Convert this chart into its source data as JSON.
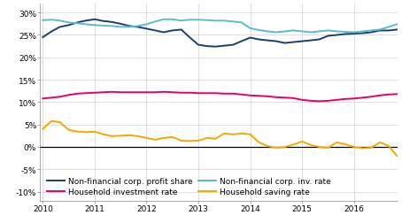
{
  "xlim": [
    2009.95,
    2016.85
  ],
  "ylim": [
    -0.12,
    0.32
  ],
  "yticks": [
    -0.1,
    -0.05,
    0.0,
    0.05,
    0.1,
    0.15,
    0.2,
    0.25,
    0.3
  ],
  "xticks": [
    2010,
    2011,
    2012,
    2013,
    2014,
    2015,
    2016
  ],
  "grid_color": "#d0d0d0",
  "bg_color": "#ffffff",
  "zero_line_color": "#000000",
  "nf_profit_share": {
    "color": "#1a3e6e",
    "label": "Non-financial corp. profit share",
    "x": [
      2010.0,
      2010.17,
      2010.33,
      2010.5,
      2010.67,
      2010.83,
      2011.0,
      2011.17,
      2011.33,
      2011.5,
      2011.67,
      2011.83,
      2012.0,
      2012.17,
      2012.33,
      2012.5,
      2012.67,
      2012.83,
      2013.0,
      2013.17,
      2013.33,
      2013.5,
      2013.67,
      2013.83,
      2014.0,
      2014.17,
      2014.33,
      2014.5,
      2014.67,
      2014.83,
      2015.0,
      2015.17,
      2015.33,
      2015.5,
      2015.67,
      2015.83,
      2016.0,
      2016.17,
      2016.33,
      2016.5,
      2016.67,
      2016.83
    ],
    "y": [
      0.245,
      0.258,
      0.268,
      0.272,
      0.278,
      0.282,
      0.285,
      0.281,
      0.279,
      0.275,
      0.27,
      0.268,
      0.264,
      0.26,
      0.256,
      0.26,
      0.262,
      0.245,
      0.228,
      0.225,
      0.224,
      0.226,
      0.228,
      0.236,
      0.244,
      0.24,
      0.238,
      0.236,
      0.232,
      0.234,
      0.236,
      0.238,
      0.24,
      0.248,
      0.25,
      0.252,
      0.253,
      0.254,
      0.256,
      0.26,
      0.26,
      0.262
    ]
  },
  "nf_inv_rate": {
    "color": "#5bbccc",
    "label": "Non-financial corp. inv. rate",
    "x": [
      2010.0,
      2010.17,
      2010.33,
      2010.5,
      2010.67,
      2010.83,
      2011.0,
      2011.17,
      2011.33,
      2011.5,
      2011.67,
      2011.83,
      2012.0,
      2012.17,
      2012.33,
      2012.5,
      2012.67,
      2012.83,
      2013.0,
      2013.17,
      2013.33,
      2013.5,
      2013.67,
      2013.83,
      2014.0,
      2014.17,
      2014.33,
      2014.5,
      2014.67,
      2014.83,
      2015.0,
      2015.17,
      2015.33,
      2015.5,
      2015.67,
      2015.83,
      2016.0,
      2016.17,
      2016.33,
      2016.5,
      2016.67,
      2016.83
    ],
    "y": [
      0.283,
      0.284,
      0.282,
      0.278,
      0.276,
      0.274,
      0.272,
      0.271,
      0.27,
      0.268,
      0.268,
      0.27,
      0.274,
      0.28,
      0.285,
      0.285,
      0.282,
      0.284,
      0.284,
      0.283,
      0.282,
      0.282,
      0.28,
      0.278,
      0.265,
      0.261,
      0.258,
      0.256,
      0.258,
      0.26,
      0.258,
      0.256,
      0.258,
      0.26,
      0.258,
      0.257,
      0.256,
      0.258,
      0.26,
      0.262,
      0.268,
      0.274
    ]
  },
  "hh_inv_rate": {
    "color": "#e6006e",
    "label": "Household investment rate",
    "x": [
      2010.0,
      2010.17,
      2010.33,
      2010.5,
      2010.67,
      2010.83,
      2011.0,
      2011.17,
      2011.33,
      2011.5,
      2011.67,
      2011.83,
      2012.0,
      2012.17,
      2012.33,
      2012.5,
      2012.67,
      2012.83,
      2013.0,
      2013.17,
      2013.33,
      2013.5,
      2013.67,
      2013.83,
      2014.0,
      2014.17,
      2014.33,
      2014.5,
      2014.67,
      2014.83,
      2015.0,
      2015.17,
      2015.33,
      2015.5,
      2015.67,
      2015.83,
      2016.0,
      2016.17,
      2016.33,
      2016.5,
      2016.67,
      2016.83
    ],
    "y": [
      0.108,
      0.11,
      0.112,
      0.116,
      0.119,
      0.12,
      0.121,
      0.122,
      0.123,
      0.122,
      0.122,
      0.122,
      0.122,
      0.122,
      0.123,
      0.122,
      0.121,
      0.121,
      0.12,
      0.12,
      0.12,
      0.119,
      0.119,
      0.117,
      0.115,
      0.114,
      0.113,
      0.111,
      0.11,
      0.109,
      0.105,
      0.103,
      0.102,
      0.103,
      0.105,
      0.107,
      0.108,
      0.11,
      0.112,
      0.115,
      0.117,
      0.118
    ]
  },
  "hh_saving_rate": {
    "color": "#f5a800",
    "label": "Household saving rate",
    "x": [
      2010.0,
      2010.17,
      2010.33,
      2010.5,
      2010.67,
      2010.83,
      2011.0,
      2011.17,
      2011.33,
      2011.5,
      2011.67,
      2011.83,
      2012.0,
      2012.17,
      2012.33,
      2012.5,
      2012.67,
      2012.83,
      2013.0,
      2013.17,
      2013.33,
      2013.5,
      2013.67,
      2013.83,
      2014.0,
      2014.17,
      2014.33,
      2014.5,
      2014.67,
      2014.83,
      2015.0,
      2015.17,
      2015.33,
      2015.5,
      2015.67,
      2015.83,
      2016.0,
      2016.17,
      2016.33,
      2016.5,
      2016.67,
      2016.83
    ],
    "y": [
      0.04,
      0.058,
      0.055,
      0.038,
      0.034,
      0.033,
      0.034,
      0.028,
      0.024,
      0.025,
      0.026,
      0.024,
      0.02,
      0.016,
      0.02,
      0.022,
      0.014,
      0.013,
      0.014,
      0.02,
      0.018,
      0.03,
      0.028,
      0.03,
      0.028,
      0.01,
      0.002,
      -0.002,
      0.0,
      0.005,
      0.012,
      0.004,
      0.0,
      -0.002,
      0.01,
      0.006,
      0.0,
      -0.003,
      -0.002,
      0.01,
      0.002,
      -0.02
    ]
  },
  "legend": [
    {
      "label": "Non-financial corp. profit share",
      "color": "#1a3e6e"
    },
    {
      "label": "Household investment rate",
      "color": "#e6006e"
    },
    {
      "label": "Non-financial corp. inv. rate",
      "color": "#5bbccc"
    },
    {
      "label": "Household saving rate",
      "color": "#f5a800"
    }
  ],
  "line_width": 1.4,
  "font_size": 6.5
}
